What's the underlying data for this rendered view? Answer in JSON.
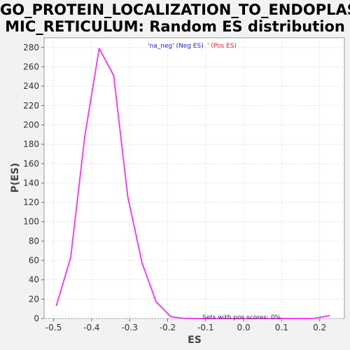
{
  "chart_data": {
    "type": "line",
    "title_line1": "GO_PROTEIN_LOCALIZATION_TO_ENDOPLAS",
    "title_line2": "MIC_RETICULUM: Random ES distribution",
    "xlabel": "ES",
    "ylabel": "P(ES)",
    "xlim": [
      -0.525,
      0.265
    ],
    "ylim": [
      0,
      290
    ],
    "x_ticks": [
      -0.5,
      -0.4,
      -0.3,
      -0.2,
      -0.1,
      0.0,
      0.1,
      0.2
    ],
    "x_tick_labels": [
      "-0.5",
      "-0.4",
      "-0.3",
      "-0.2",
      "-0.1",
      "0.0",
      "0.1",
      "0.2"
    ],
    "y_ticks": [
      0,
      20,
      40,
      60,
      80,
      100,
      120,
      140,
      160,
      180,
      200,
      220,
      240,
      260,
      280
    ],
    "grid": true,
    "legend": {
      "neg_label": "'na_neg' (Neg ES)",
      "pos_label": "' (Pos ES)",
      "neg_color": "#2222cc",
      "pos_color": "#dd2222"
    },
    "annotation": "Sets with pos scores: 0%",
    "series": [
      {
        "color": "#ee44ee",
        "x": [
          -0.493,
          -0.455,
          -0.418,
          -0.38,
          -0.342,
          -0.305,
          -0.267,
          -0.23,
          -0.192,
          -0.155,
          -0.117,
          -0.08,
          -0.042,
          -0.005,
          0.033,
          0.071,
          0.108,
          0.146,
          0.183,
          0.227
        ],
        "y": [
          13,
          63,
          188,
          279,
          251,
          126,
          57,
          17,
          2,
          0,
          0,
          0,
          0,
          0,
          0,
          0,
          0,
          0,
          0,
          3
        ]
      }
    ]
  }
}
